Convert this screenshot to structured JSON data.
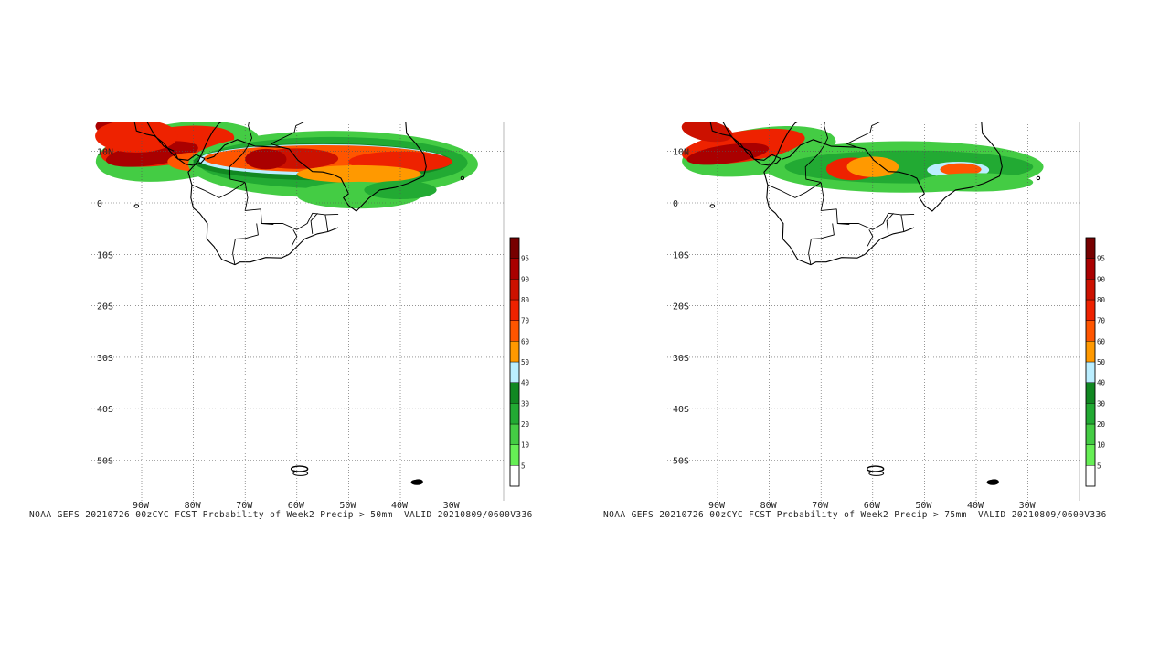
{
  "panels": [
    {
      "caption": "NOAA GEFS 20210726 00zCYC FCST Probability of Week2 Precip > 50mm  VALID 20210809/0600V336",
      "threshold_mm": 50
    },
    {
      "caption": "NOAA GEFS 20210726 00zCYC FCST Probability of Week2 Precip > 75mm  VALID 20210809/0600V336",
      "threshold_mm": 75
    }
  ],
  "axes": {
    "lon_labels": [
      "90W",
      "80W",
      "70W",
      "60W",
      "50W",
      "40W",
      "30W"
    ],
    "lat_labels": [
      "10N",
      "0",
      "10S",
      "20S",
      "30S",
      "40S",
      "50S"
    ]
  },
  "colorbar": {
    "labels": [
      "5",
      "10",
      "20",
      "30",
      "40",
      "50",
      "60",
      "70",
      "80",
      "90",
      "95"
    ],
    "colors": [
      "#ffffff",
      "#66ee55",
      "#44cc44",
      "#22aa33",
      "#118822",
      "#bbeeff",
      "#ff9900",
      "#ff5500",
      "#ee2200",
      "#cc1100",
      "#aa0000",
      "#770000"
    ]
  },
  "palette": {
    "coast": "#000000",
    "grid": "#555555"
  }
}
